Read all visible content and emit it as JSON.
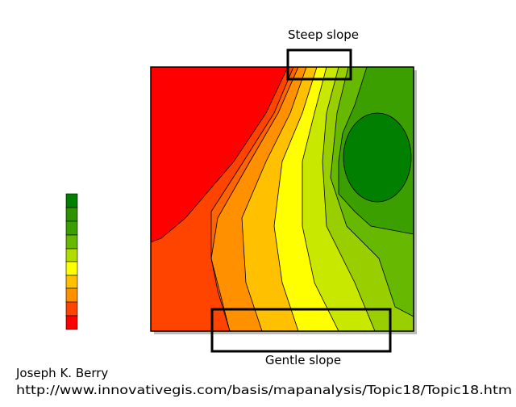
{
  "annotations": {
    "steep": "Steep slope",
    "gentle": "Gentle slope"
  },
  "credit": {
    "author": "Joseph K. Berry",
    "url": "http://www.innovativegis.com/basis/mapanalysis/Topic18/Topic18.htm"
  }
}
